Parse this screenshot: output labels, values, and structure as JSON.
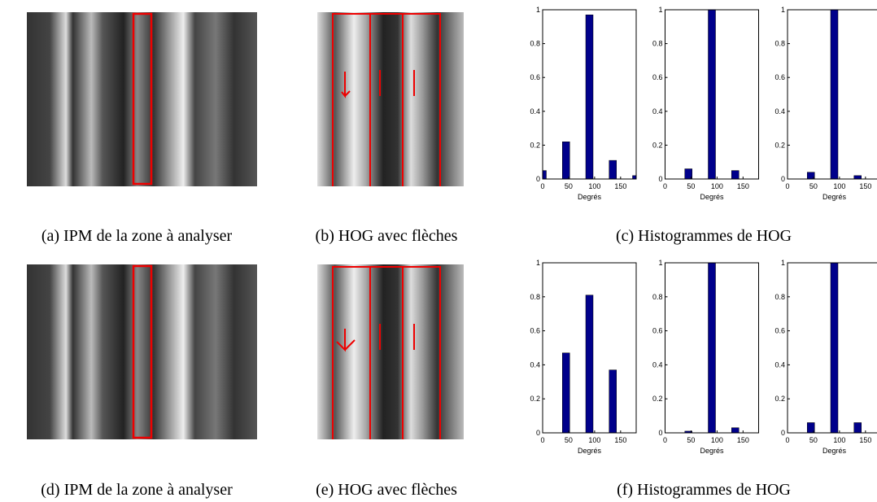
{
  "captions": [
    "(a) IPM de la zone à analyser",
    "(b) HOG avec flèches",
    "(c) Histogrammes de HOG",
    "(d) IPM de la zone à analyser",
    "(e) HOG avec flèches",
    "(f) Histogrammes de HOG"
  ],
  "chart_data": [
    {
      "type": "bar",
      "x": [
        0,
        45,
        90,
        135,
        180
      ],
      "values": [
        0.05,
        0.22,
        0.97,
        0.11,
        0.02
      ],
      "xlabel": "Degrés",
      "xlim": [
        0,
        180
      ],
      "ylim": [
        0,
        1
      ],
      "xticks": [
        0,
        50,
        100,
        150
      ],
      "yticks": [
        0,
        0.2,
        0.4,
        0.6,
        0.8,
        1
      ],
      "color": "#00008b"
    },
    {
      "type": "bar",
      "x": [
        0,
        45,
        90,
        135,
        180
      ],
      "values": [
        0,
        0.06,
        1,
        0.05,
        0
      ],
      "xlabel": "Degrés",
      "xlim": [
        0,
        180
      ],
      "ylim": [
        0,
        1
      ],
      "xticks": [
        0,
        50,
        100,
        150
      ],
      "yticks": [
        0,
        0.2,
        0.4,
        0.6,
        0.8,
        1
      ],
      "color": "#00008b"
    },
    {
      "type": "bar",
      "x": [
        0,
        45,
        90,
        135,
        180
      ],
      "values": [
        0,
        0.04,
        1,
        0.02,
        0
      ],
      "xlabel": "Degrés",
      "xlim": [
        0,
        180
      ],
      "ylim": [
        0,
        1
      ],
      "xticks": [
        0,
        50,
        100,
        150
      ],
      "yticks": [
        0,
        0.2,
        0.4,
        0.6,
        0.8,
        1
      ],
      "color": "#00008b"
    },
    {
      "type": "bar",
      "x": [
        0,
        45,
        90,
        135,
        180
      ],
      "values": [
        0,
        0.47,
        0.81,
        0.37,
        0
      ],
      "xlabel": "Degrés",
      "xlim": [
        0,
        180
      ],
      "ylim": [
        0,
        1
      ],
      "xticks": [
        0,
        50,
        100,
        150
      ],
      "yticks": [
        0,
        0.2,
        0.4,
        0.6,
        0.8,
        1
      ],
      "color": "#00008b"
    },
    {
      "type": "bar",
      "x": [
        0,
        45,
        90,
        135,
        180
      ],
      "values": [
        0,
        0.01,
        1,
        0.03,
        0
      ],
      "xlabel": "Degrés",
      "xlim": [
        0,
        180
      ],
      "ylim": [
        0,
        1
      ],
      "xticks": [
        0,
        50,
        100,
        150
      ],
      "yticks": [
        0,
        0.2,
        0.4,
        0.6,
        0.8,
        1
      ],
      "color": "#00008b"
    },
    {
      "type": "bar",
      "x": [
        0,
        45,
        90,
        135,
        180
      ],
      "values": [
        0,
        0.06,
        1,
        0.06,
        0
      ],
      "xlabel": "Degrés",
      "xlim": [
        0,
        180
      ],
      "ylim": [
        0,
        1
      ],
      "xticks": [
        0,
        50,
        100,
        150
      ],
      "yticks": [
        0,
        0.2,
        0.4,
        0.6,
        0.8,
        1
      ],
      "color": "#00008b"
    }
  ]
}
